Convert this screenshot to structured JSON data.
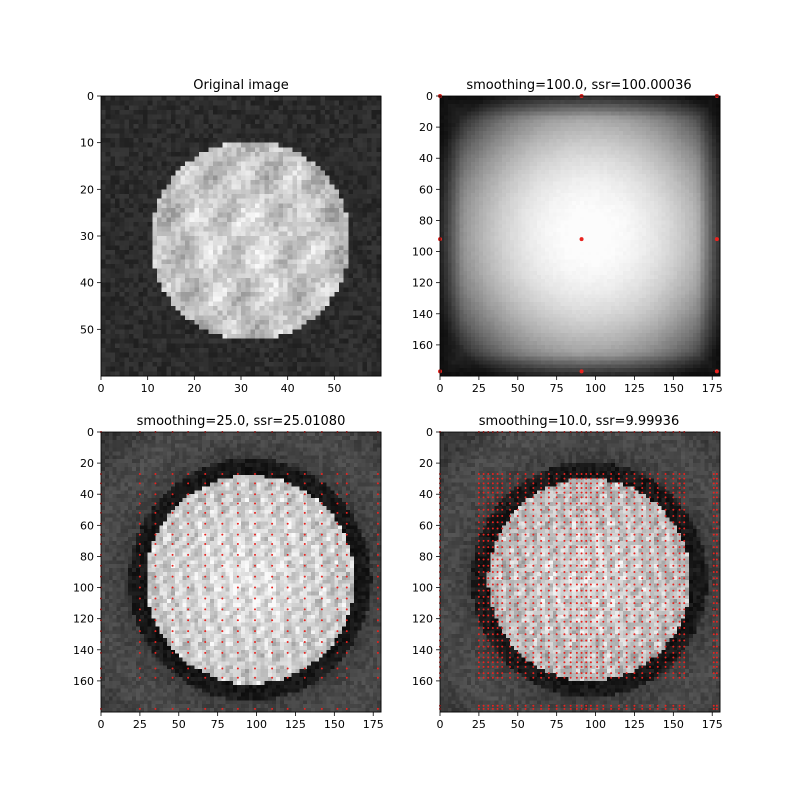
{
  "figure": {
    "background": "#ffffff"
  },
  "colors": {
    "knot": "#e8231f",
    "frame": "#000000"
  },
  "chart_data": [
    {
      "type": "heatmap",
      "title": "Original image",
      "colormap": "gray",
      "image_size": [
        60,
        60
      ],
      "xlim": [
        0,
        60
      ],
      "ylim": [
        60,
        0
      ],
      "xticks": [
        0,
        10,
        20,
        30,
        40,
        50
      ],
      "yticks": [
        0,
        10,
        20,
        30,
        40,
        50
      ],
      "content": "coin",
      "coin": {
        "center": [
          32,
          31
        ],
        "radius": 21.5,
        "intensity": 0.86
      },
      "knots": {
        "x": [],
        "y": []
      }
    },
    {
      "type": "heatmap",
      "title": "smoothing=100.0, ssr=100.00036",
      "smoothing": 100.0,
      "ssr": 100.00036,
      "colormap": "gray",
      "image_size": [
        180,
        180
      ],
      "xlim": [
        0,
        180
      ],
      "ylim": [
        180,
        0
      ],
      "xticks": [
        0,
        25,
        50,
        75,
        100,
        125,
        150,
        175
      ],
      "yticks": [
        0,
        20,
        40,
        60,
        80,
        100,
        120,
        140,
        160
      ],
      "content": "blob",
      "coin": {
        "center": [
          96,
          89
        ],
        "radius": 62,
        "intensity": 1.0
      },
      "knots": {
        "x": [
          0,
          91,
          178
        ],
        "y": [
          0,
          92,
          177
        ]
      }
    },
    {
      "type": "heatmap",
      "title": "smoothing=25.0, ssr=25.01080",
      "smoothing": 25.0,
      "ssr": 25.0108,
      "colormap": "gray",
      "image_size": [
        180,
        180
      ],
      "xlim": [
        0,
        180
      ],
      "ylim": [
        180,
        0
      ],
      "xticks": [
        0,
        25,
        50,
        75,
        100,
        125,
        150,
        175
      ],
      "yticks": [
        0,
        20,
        40,
        60,
        80,
        100,
        120,
        140,
        160
      ],
      "content": "coin",
      "coin": {
        "center": [
          96,
          95
        ],
        "radius": 67,
        "intensity": 0.9
      },
      "knots": {
        "x": [
          0,
          25,
          35,
          46,
          56,
          67,
          78,
          88,
          99,
          110,
          120,
          131,
          142,
          152,
          158,
          178
        ],
        "y": [
          0,
          27,
          33,
          40,
          46,
          52,
          59,
          66,
          72,
          79,
          86,
          93,
          100,
          107,
          114,
          121,
          128,
          135,
          142,
          152,
          158,
          178
        ]
      }
    },
    {
      "type": "heatmap",
      "title": "smoothing=10.0, ssr=9.99936",
      "smoothing": 10.0,
      "ssr": 9.99936,
      "colormap": "gray",
      "image_size": [
        180,
        180
      ],
      "xlim": [
        0,
        180
      ],
      "ylim": [
        180,
        0
      ],
      "xticks": [
        0,
        25,
        50,
        75,
        100,
        125,
        150,
        175
      ],
      "yticks": [
        0,
        20,
        40,
        60,
        80,
        100,
        120,
        140,
        160
      ],
      "content": "coin",
      "coin": {
        "center": [
          96,
          95
        ],
        "radius": 65,
        "intensity": 0.85
      },
      "knots": {
        "x": [
          0,
          25,
          28,
          31,
          34,
          37,
          40,
          45,
          50,
          55,
          60,
          65,
          70,
          75,
          80,
          84,
          88,
          91,
          94,
          97,
          101,
          105,
          110,
          115,
          120,
          125,
          130,
          135,
          140,
          145,
          150,
          154,
          157,
          176,
          178
        ],
        "y": [
          0,
          27,
          30,
          33,
          36,
          39,
          42,
          46,
          50,
          54,
          58,
          62,
          66,
          70,
          74,
          78,
          82,
          86,
          90,
          94,
          98,
          102,
          106,
          110,
          114,
          118,
          122,
          126,
          130,
          134,
          138,
          142,
          145,
          148,
          151,
          155,
          158,
          176,
          178
        ]
      }
    }
  ]
}
